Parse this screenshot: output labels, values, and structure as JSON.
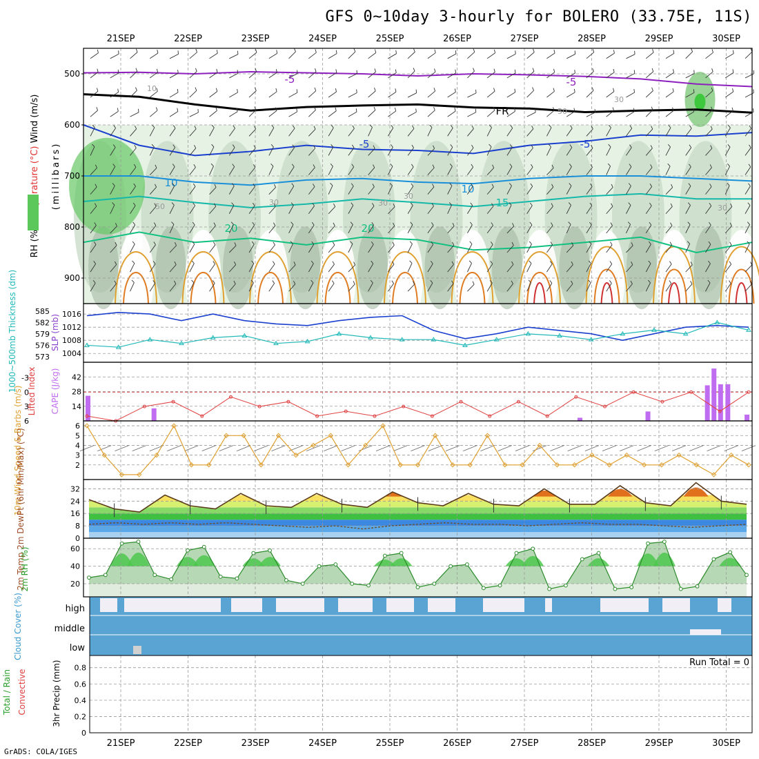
{
  "title": "GFS 0~10day 3-hourly for BOLERO (33.75E, 11S)",
  "credit": "GrADS: COLA/IGES",
  "chart_data": {
    "type": "meteogram",
    "dates": [
      "21SEP",
      "22SEP",
      "23SEP",
      "24SEP",
      "25SEP",
      "26SEP",
      "27SEP",
      "28SEP",
      "29SEP",
      "30SEP"
    ],
    "panels": {
      "upper_air": {
        "ylabel": "(millibars)",
        "legend": {
          "rh": "RH (%)",
          "temp": "Temperature (°C)",
          "wind": "Wind (m/s)"
        },
        "y_ticks": [
          500,
          600,
          700,
          800,
          900
        ],
        "ylim": [
          450,
          950
        ],
        "temp_labels": [
          "-5",
          "-5",
          "-5",
          "-5",
          "10",
          "10",
          "15",
          "20",
          "20",
          "FR"
        ],
        "rh_labels": [
          "10",
          "30",
          "30",
          "30",
          "50",
          "50",
          "30",
          "30"
        ],
        "isotherms": [
          {
            "label": "-5",
            "color": "#8e1fbf",
            "level": [
              498,
              497,
              500,
              496,
              498,
              500,
              504,
              500,
              502,
              505,
              510,
              520,
              525
            ]
          },
          {
            "label": "0",
            "color": "#000000",
            "level": [
              540,
              545,
              560,
              572,
              565,
              562,
              560,
              566,
              568,
              575,
              572,
              570,
              576
            ]
          },
          {
            "label": "5",
            "color": "#1a3fcf",
            "level": [
              600,
              640,
              660,
              652,
              640,
              648,
              650,
              656,
              640,
              632,
              620,
              622,
              615
            ]
          },
          {
            "label": "10",
            "color": "#1a8fd9",
            "level": [
              700,
              700,
              712,
              718,
              708,
              705,
              712,
              715,
              705,
              700,
              700,
              705,
              710
            ]
          },
          {
            "label": "15",
            "color": "#14b8a8",
            "level": [
              750,
              740,
              752,
              762,
              755,
              745,
              752,
              760,
              750,
              740,
              735,
              745,
              745
            ]
          },
          {
            "label": "20",
            "color": "#10c080",
            "level": [
              830,
              810,
              830,
              822,
              835,
              820,
              825,
              845,
              840,
              830,
              820,
              850,
              830
            ]
          }
        ]
      },
      "sfc_pressure": {
        "ylabel_slp": "SLP (mb)",
        "ylabel_thk": "1000~500mb Thickness (dm)",
        "slp_ticks": [
          1004,
          1008,
          1012,
          1016
        ],
        "thk_ticks": [
          573,
          576,
          579,
          582,
          585
        ],
        "slp": [
          1015.5,
          1016.5,
          1016,
          1014,
          1016,
          1014,
          1013,
          1012.5,
          1014,
          1015,
          1015.5,
          1011,
          1008.5,
          1010,
          1012,
          1011,
          1010,
          1008,
          1010,
          1012,
          1012.5,
          1012
        ],
        "thickness": [
          576,
          575.5,
          577.5,
          576.5,
          578,
          578.5,
          576.5,
          577,
          579,
          578,
          577.5,
          577.5,
          576,
          577.5,
          579,
          578.5,
          577.5,
          579,
          580,
          579,
          582,
          580
        ]
      },
      "cape_li": {
        "ylabel_li": "Lifted Index",
        "ylabel_cape": "CAPE (J/kg)",
        "li_ticks": [
          "-3",
          "0",
          "3",
          "6"
        ],
        "cape_ticks": [
          14,
          28,
          42
        ],
        "cape_bars": [
          {
            "x": 0.0,
            "v": 24
          },
          {
            "x": 1.0,
            "v": 12
          },
          {
            "x": 7.45,
            "v": 3
          },
          {
            "x": 8.48,
            "v": 9
          },
          {
            "x": 9.38,
            "v": 34
          },
          {
            "x": 9.48,
            "v": 50
          },
          {
            "x": 9.58,
            "v": 35
          },
          {
            "x": 9.69,
            "v": 35
          },
          {
            "x": 9.98,
            "v": 6
          }
        ],
        "li": [
          5,
          6,
          3,
          2,
          5,
          1,
          3,
          2,
          5,
          4,
          5,
          3,
          5,
          2,
          5,
          2,
          5,
          1,
          3,
          0,
          2,
          0,
          4,
          0
        ]
      },
      "wind10m": {
        "ylabel": "10m Wind Speed & Barbs (m/s)",
        "y_ticks": [
          2,
          3,
          4,
          5,
          6
        ],
        "speed": [
          6,
          3,
          1,
          1,
          3,
          6,
          2,
          2,
          5,
          5,
          2,
          5,
          3,
          4,
          5,
          2,
          4,
          6,
          2,
          2,
          5,
          2,
          2,
          5,
          2,
          2,
          4,
          2,
          2,
          3,
          2,
          3,
          2,
          2,
          3,
          2,
          1,
          3,
          2
        ]
      },
      "temp2m": {
        "ylabel": "2m Temp 2m DewPt (6hr Min/Max) (°C)",
        "y_ticks": [
          0,
          8,
          16,
          24,
          32
        ],
        "temp": [
          25,
          19,
          17,
          28,
          21,
          19,
          29,
          21,
          20,
          29,
          22,
          20,
          30,
          23,
          21,
          29,
          22,
          21,
          32,
          22,
          22,
          34,
          23,
          21,
          36,
          24,
          22
        ],
        "dewpt": [
          9,
          10,
          9,
          10,
          9,
          10,
          9,
          8,
          7,
          8,
          6,
          8,
          9,
          10,
          9,
          9,
          8,
          9,
          10,
          9,
          9,
          8,
          7,
          8,
          9
        ]
      },
      "rh2m": {
        "ylabel": "2m RH (%)",
        "y_ticks": [
          20,
          40,
          60
        ],
        "rh": [
          27,
          30,
          66,
          68,
          30,
          25,
          58,
          62,
          28,
          26,
          55,
          58,
          24,
          20,
          40,
          42,
          20,
          18,
          52,
          55,
          16,
          20,
          40,
          42,
          15,
          18,
          55,
          60,
          14,
          18,
          48,
          55,
          14,
          16,
          66,
          68,
          14,
          17,
          48,
          56,
          30
        ]
      },
      "cloud": {
        "ylabel": "Cloud Cover (%)",
        "levels": [
          "high",
          "middle",
          "low"
        ]
      },
      "precip": {
        "ylabel_total": "Total / Rain",
        "ylabel_conv": "Convective",
        "ylabel": "3hr Precip (mm)",
        "y_ticks": [
          "0",
          "0.2",
          "0.4",
          "0.6",
          "0.8"
        ],
        "run_total": "Run Total = 0"
      }
    }
  }
}
